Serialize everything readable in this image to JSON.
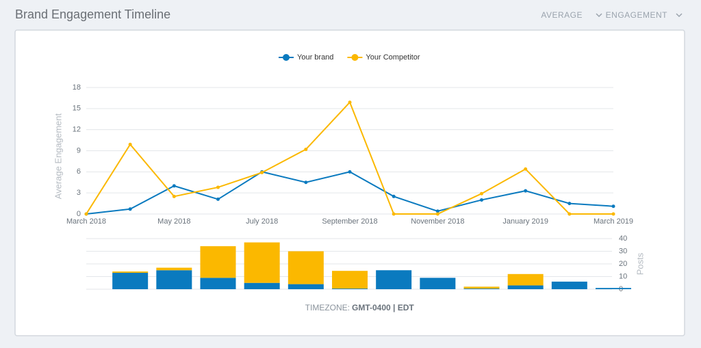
{
  "header": {
    "title": "Brand Engagement Timeline",
    "controls": [
      "AVERAGE",
      "ENGAGEMENT"
    ]
  },
  "chart_data": [
    {
      "type": "line",
      "ylabel": "Average Engagement",
      "categories": [
        "March 2018",
        null,
        "May 2018",
        null,
        "July 2018",
        null,
        "September 2018",
        null,
        "November 2018",
        null,
        "January 2019",
        null,
        "March 2019"
      ],
      "series": [
        {
          "name": "Your brand",
          "color": "#0a7abf",
          "values": [
            0,
            0.7,
            4.0,
            2.1,
            6.0,
            4.5,
            6.0,
            2.5,
            0.4,
            2.0,
            3.3,
            1.5,
            1.1
          ]
        },
        {
          "name": "Your Competitor",
          "color": "#fbb800",
          "values": [
            0,
            9.9,
            2.5,
            3.8,
            5.9,
            9.2,
            15.9,
            0,
            0,
            2.9,
            6.4,
            0,
            0
          ]
        }
      ],
      "ylim": [
        0,
        18
      ],
      "yticks": [
        0,
        3,
        6,
        9,
        12,
        15,
        18
      ],
      "grid": true,
      "legend": "top"
    },
    {
      "type": "bar",
      "stacked": true,
      "ylabel": "Posts",
      "yaxis_side": "right",
      "categories": [
        null,
        null,
        null,
        null,
        null,
        null,
        null,
        null,
        null,
        null,
        null,
        null
      ],
      "series": [
        {
          "name": "Your brand",
          "color": "#0a7abf",
          "values": [
            13,
            15,
            9,
            5,
            4,
            0.5,
            15,
            9,
            0.5,
            3,
            6,
            1
          ]
        },
        {
          "name": "Your Competitor",
          "color": "#fbb800",
          "values": [
            1,
            2,
            25,
            32,
            26,
            14,
            0,
            0,
            1.5,
            9,
            0,
            0
          ]
        }
      ],
      "ylim": [
        0,
        40
      ],
      "yticks": [
        0,
        10,
        20,
        30,
        40
      ],
      "grid": true
    }
  ],
  "footer": {
    "label": "TIMEZONE:",
    "value": "GMT-0400 | EDT"
  }
}
